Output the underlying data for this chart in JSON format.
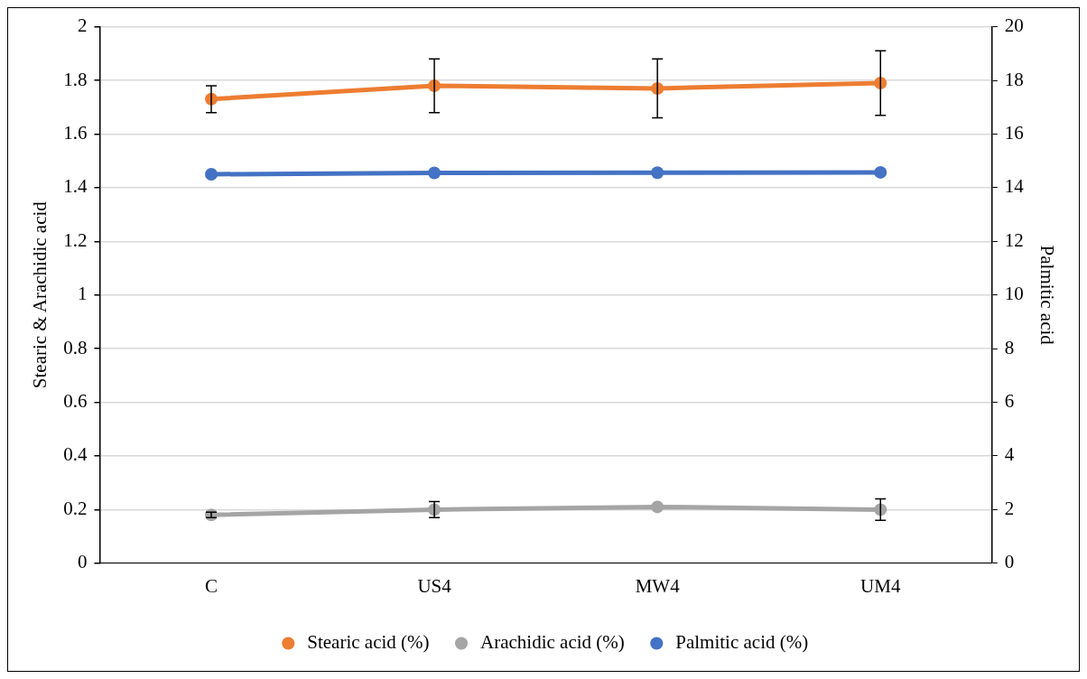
{
  "chart_data": {
    "type": "line",
    "categories": [
      "C",
      "US4",
      "MW4",
      "UM4"
    ],
    "ylabel": "Stearic & Arachidic acid",
    "y2label": "Palmitic acid",
    "ylim": [
      0,
      2
    ],
    "yticks": [
      0,
      0.2,
      0.4,
      0.6,
      0.8,
      1,
      1.2,
      1.4,
      1.6,
      1.8,
      2
    ],
    "y2lim": [
      0,
      20
    ],
    "y2ticks": [
      0,
      2,
      4,
      6,
      8,
      10,
      12,
      14,
      16,
      18,
      20
    ],
    "grid": "y",
    "legend": "bottom",
    "marker": "circle",
    "line_style": "solid",
    "series": [
      {
        "name": "Stearic acid (%)",
        "color": "#ed7d31",
        "values": [
          1.73,
          1.78,
          1.77,
          1.79
        ],
        "errors": [
          0.05,
          0.1,
          0.11,
          0.12
        ]
      },
      {
        "name": "Arachidic acid (%)",
        "color": "#a5a5a5",
        "values": [
          0.18,
          0.2,
          0.21,
          0.2
        ],
        "errors": [
          0.01,
          0.03,
          null,
          0.04
        ]
      },
      {
        "name": "Palmitic acid (%)",
        "color": "#4472c4",
        "values": [
          14.5,
          14.55,
          14.56,
          14.57
        ],
        "axis": "y2"
      }
    ]
  }
}
